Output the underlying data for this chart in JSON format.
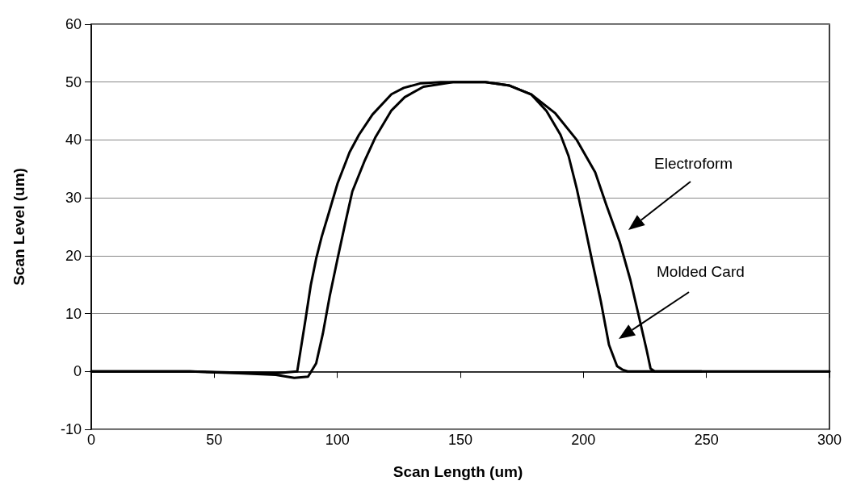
{
  "chart_data": {
    "type": "line",
    "xlabel": "Scan Length (um)",
    "ylabel": "Scan Level (um)",
    "xlim": [
      0,
      300
    ],
    "xticks": [
      0,
      50,
      100,
      150,
      200,
      250,
      300
    ],
    "ylim": [
      -10,
      60
    ],
    "yticks": [
      -10,
      0,
      10,
      20,
      30,
      40,
      50,
      60
    ],
    "grid": "y",
    "marker": "none",
    "line_style": "solid",
    "series": [
      {
        "color": "#000000",
        "x": [
          0,
          20,
          40,
          60,
          75,
          83.7,
          87,
          89.2,
          91.4,
          93.6,
          96.9,
          100.1,
          105,
          108.8,
          114.3,
          122,
          127,
          134,
          142,
          150,
          160.2,
          170,
          178.7,
          188.6,
          197.3,
          204.8,
          209.3,
          214.8,
          219.1,
          222.4,
          225.7,
          227.3,
          229,
          248,
          260,
          300
        ],
        "values": [
          0,
          0,
          0,
          -0.2,
          -0.3,
          0,
          8.8,
          14.9,
          19.5,
          23.2,
          27.9,
          32.5,
          37.9,
          40.9,
          44.4,
          47.9,
          49,
          49.8,
          50,
          50,
          50,
          49.4,
          47.9,
          44.6,
          40,
          34.4,
          28.8,
          22.3,
          15.8,
          9.8,
          3.7,
          0.5,
          0,
          0,
          0,
          0
        ]
      },
      {
        "color": "#000000",
        "x": [
          0,
          20,
          40,
          60,
          75,
          82.5,
          88.1,
          91.4,
          94.1,
          96.9,
          100.1,
          103.4,
          106.1,
          111,
          115.4,
          122,
          127.4,
          135,
          147,
          155,
          160.2,
          170,
          178.7,
          185,
          190.7,
          194,
          197.3,
          200.6,
          203.8,
          207.1,
          210.4,
          213.7,
          215.9,
          218,
          230,
          248
        ],
        "values": [
          0,
          0,
          0,
          -0.3,
          -0.6,
          -1.1,
          -0.9,
          1.4,
          6.5,
          13,
          19.5,
          26,
          31.1,
          36.3,
          40.4,
          45.1,
          47.4,
          49.2,
          50,
          50,
          50,
          49.4,
          47.9,
          45,
          40.9,
          37.2,
          31.6,
          25.1,
          18.6,
          12.1,
          4.6,
          0.9,
          0.3,
          0,
          0,
          0
        ]
      }
    ],
    "annotations": [
      "Electroform",
      "Molded Card"
    ]
  }
}
